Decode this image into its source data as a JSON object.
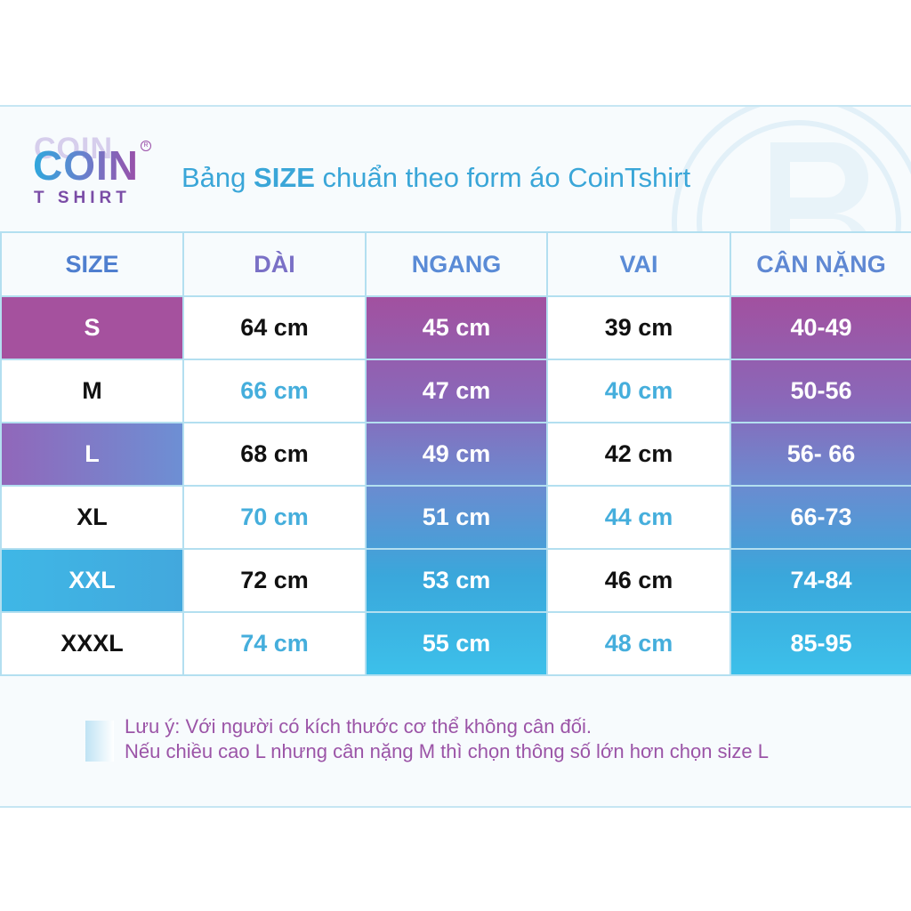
{
  "brand": {
    "logo_word": "COIN",
    "logo_sub": "T SHIRT",
    "registered": "R"
  },
  "heading": {
    "prefix": "Bảng ",
    "highlight": "SIZE",
    "suffix": " chuẩn theo form áo CoinTshirt"
  },
  "table": {
    "headers": [
      "SIZE",
      "DÀI",
      "NGANG",
      "VAI",
      "CÂN NẶNG"
    ],
    "rows": [
      {
        "size": "S",
        "dai": "64 cm",
        "ngang": "45 cm",
        "vai": "39 cm",
        "can_nang": "40-49"
      },
      {
        "size": "M",
        "dai": "66 cm",
        "ngang": "47 cm",
        "vai": "40 cm",
        "can_nang": "50-56"
      },
      {
        "size": "L",
        "dai": "68 cm",
        "ngang": "49 cm",
        "vai": "42 cm",
        "can_nang": "56- 66"
      },
      {
        "size": "XL",
        "dai": "70 cm",
        "ngang": "51 cm",
        "vai": "44 cm",
        "can_nang": "66-73"
      },
      {
        "size": "XXL",
        "dai": "72 cm",
        "ngang": "53 cm",
        "vai": "46 cm",
        "can_nang": "74-84"
      },
      {
        "size": "XXXL",
        "dai": "74 cm",
        "ngang": "55 cm",
        "vai": "48 cm",
        "can_nang": "85-95"
      }
    ]
  },
  "note": {
    "line1": "Lưu ý: Với người có kích thước cơ thể không cân đối.",
    "line2": "Nếu chiều cao L nhưng cân nặng M thì chọn thông số lớn hơn chọn size L"
  },
  "colors": {
    "purple": "#a5519e",
    "blue": "#3aa7db",
    "text_blue": "#45aedc",
    "note_purple": "#9b54a7"
  }
}
